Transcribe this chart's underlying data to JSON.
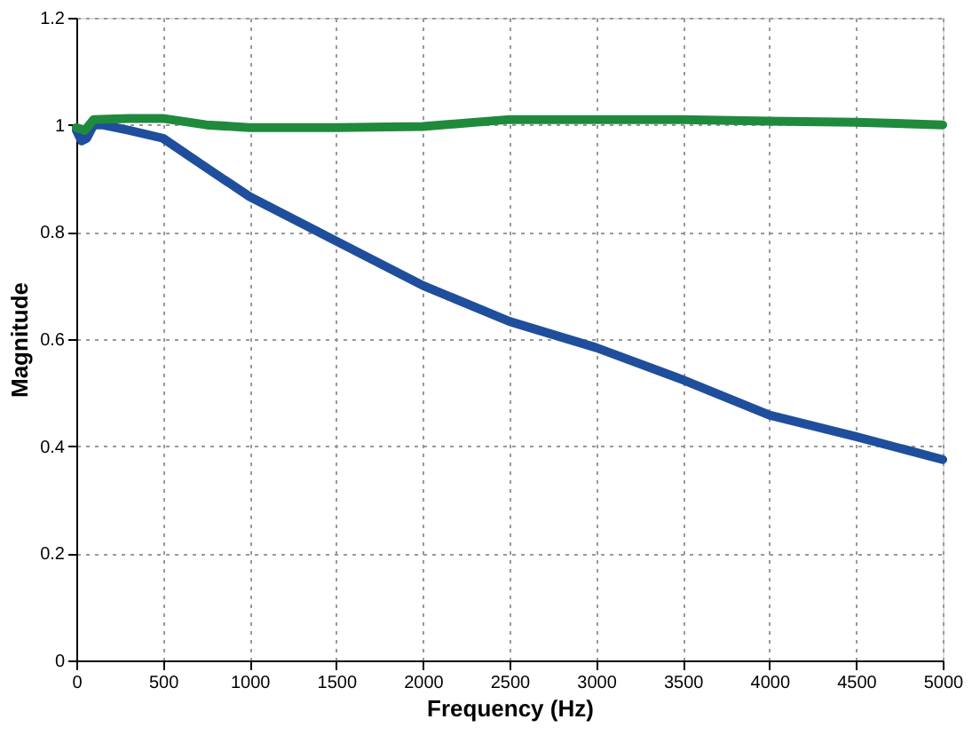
{
  "chart_data": {
    "type": "line",
    "xlabel": "Frequency (Hz)",
    "ylabel": "Magnitude",
    "xlim": [
      0,
      5000
    ],
    "xticks": [
      0,
      500,
      1000,
      1500,
      2000,
      2500,
      3000,
      3500,
      4000,
      4500,
      5000
    ],
    "ylim": [
      0,
      1.2
    ],
    "yticks": [
      0,
      0.2,
      0.4,
      0.6,
      0.8,
      1,
      1.2
    ],
    "grid": true,
    "marker": "none",
    "line_style": "solid",
    "series": [
      {
        "color": "#1f4e9c",
        "x": [
          0,
          30,
          60,
          100,
          150,
          300,
          500,
          750,
          1000,
          1500,
          2000,
          2500,
          3000,
          3500,
          4000,
          4500,
          5000
        ],
        "values": [
          0.99,
          0.97,
          0.975,
          1.0,
          1.0,
          0.99,
          0.975,
          0.92,
          0.866,
          0.783,
          0.7,
          0.633,
          0.584,
          0.524,
          0.458,
          0.418,
          0.375
        ]
      },
      {
        "color": "#1f8a3c",
        "x": [
          0,
          50,
          100,
          300,
          500,
          750,
          1000,
          1500,
          2000,
          2500,
          3000,
          3500,
          4000,
          4500,
          5000
        ],
        "values": [
          0.995,
          0.99,
          1.01,
          1.012,
          1.012,
          1.0,
          0.995,
          0.995,
          0.997,
          1.01,
          1.01,
          1.01,
          1.007,
          1.005,
          1.0
        ]
      }
    ]
  }
}
